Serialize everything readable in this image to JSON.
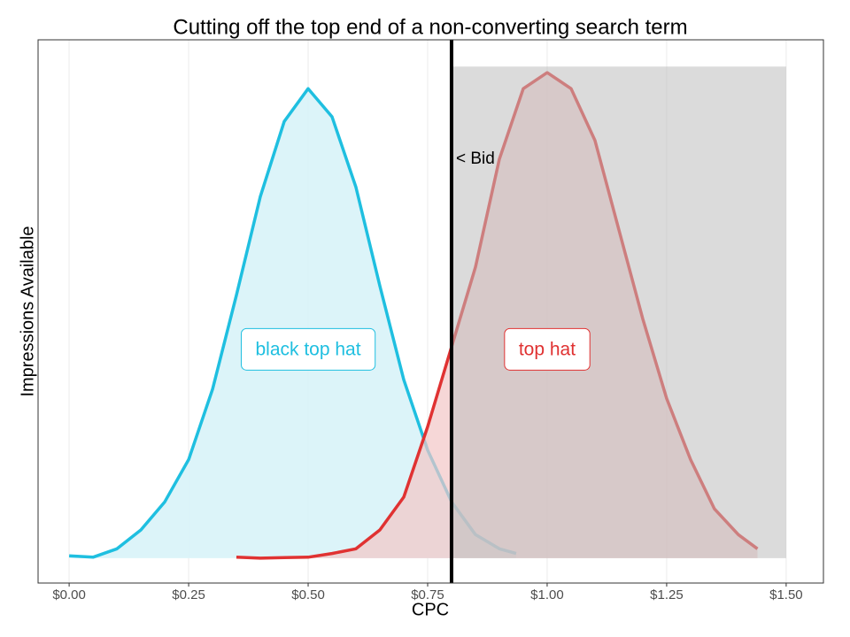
{
  "chart_data": {
    "type": "area",
    "title": "Cutting off the top end of a non-converting search term",
    "x_label": "CPC",
    "y_label": "Impressions Available",
    "xlim": [
      -0.065,
      1.578
    ],
    "ylim": [
      -0.053,
      1.104
    ],
    "xticks": [
      {
        "value": 0,
        "label": "$0.00"
      },
      {
        "value": 0.25,
        "label": "$0.25"
      },
      {
        "value": 0.5,
        "label": "$0.50"
      },
      {
        "value": 0.75,
        "label": "$0.75"
      },
      {
        "value": 1,
        "label": "$1.00"
      },
      {
        "value": 1.25,
        "label": "$1.25"
      },
      {
        "value": 1.5,
        "label": "$1.50"
      }
    ],
    "grid": true,
    "series": [
      {
        "name": "black top hat",
        "color": "#1fbfe0",
        "fill": "#d8f3f8",
        "label_x": 0.5,
        "label_y": 0.443,
        "x": [
          0,
          0.05,
          0.1,
          0.15,
          0.2,
          0.25,
          0.3,
          0.35,
          0.4,
          0.45,
          0.5,
          0.55,
          0.6,
          0.65,
          0.7,
          0.75,
          0.8,
          0.85,
          0.9,
          0.935
        ],
        "values": [
          0.005,
          0.002,
          0.02,
          0.06,
          0.12,
          0.21,
          0.36,
          0.56,
          0.77,
          0.93,
          1,
          0.94,
          0.79,
          0.58,
          0.38,
          0.23,
          0.12,
          0.05,
          0.02,
          0.01
        ]
      },
      {
        "name": "top hat",
        "color": "#e03232",
        "fill": "#f2c6c6",
        "label_x": 1.0,
        "label_y": 0.443,
        "x": [
          0.35,
          0.4,
          0.45,
          0.5,
          0.55,
          0.6,
          0.65,
          0.7,
          0.75,
          0.8,
          0.85,
          0.9,
          0.95,
          1,
          1.05,
          1.1,
          1.15,
          1.2,
          1.25,
          1.3,
          1.35,
          1.4,
          1.44
        ],
        "values": [
          0.002,
          0,
          0.001,
          0.002,
          0.01,
          0.02,
          0.06,
          0.13,
          0.28,
          0.45,
          0.62,
          0.85,
          1,
          1.034,
          1,
          0.89,
          0.7,
          0.51,
          0.34,
          0.21,
          0.105,
          0.05,
          0.02
        ]
      }
    ],
    "shaded_region": {
      "xlim": [
        0.8,
        1.5
      ],
      "ylim": [
        0,
        1.047
      ],
      "color": "#bdbdbd"
    },
    "bid": {
      "value": 0.8,
      "label": "< Bid",
      "label_y": 0.85,
      "color": "#000000"
    }
  }
}
